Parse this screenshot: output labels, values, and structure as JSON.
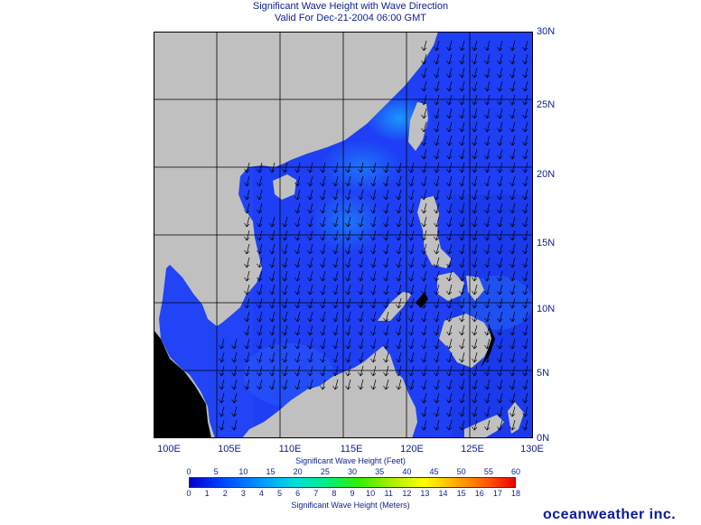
{
  "title": {
    "line1": "Significant Wave Height with Wave Direction",
    "line2": "Valid For Dec-21-2004 06:00 GMT"
  },
  "map": {
    "lon_labels": [
      "100E",
      "105E",
      "110E",
      "115E",
      "120E",
      "125E",
      "130E"
    ],
    "lat_labels": [
      "30N",
      "25N",
      "20N",
      "15N",
      "10N",
      "5N",
      "0N"
    ],
    "land_color": "#c0c0c0",
    "ocean_color": "#1e3ff5",
    "arrow_direction": "southwest"
  },
  "scale": {
    "feet_title": "Significant Wave Height (Feet)",
    "feet_ticks": [
      "0",
      "5",
      "10",
      "15",
      "20",
      "25",
      "30",
      "35",
      "40",
      "45",
      "50",
      "55",
      "60"
    ],
    "meters_title": "Significant Wave Height (Meters)",
    "meters_ticks": [
      "0",
      "1",
      "2",
      "3",
      "4",
      "5",
      "6",
      "7",
      "8",
      "9",
      "10",
      "11",
      "12",
      "13",
      "14",
      "15",
      "16",
      "17",
      "18"
    ]
  },
  "brand": "oceanweather inc."
}
